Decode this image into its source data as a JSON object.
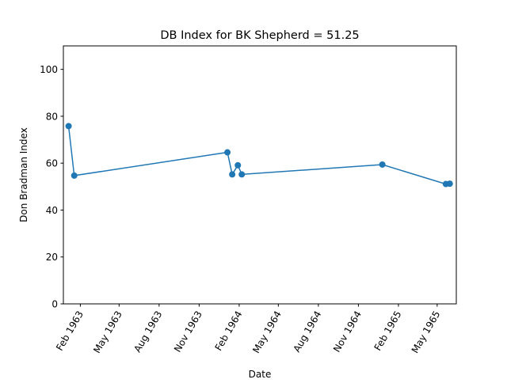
{
  "chart_data": {
    "type": "line",
    "title": "DB Index for BK Shepherd = 51.25",
    "xlabel": "Date",
    "ylabel": "Don Bradman Index",
    "x_tick_labels": [
      {
        "date": "1963-02-01",
        "label": "Feb 1963"
      },
      {
        "date": "1963-05-01",
        "label": "May 1963"
      },
      {
        "date": "1963-08-01",
        "label": "Aug 1963"
      },
      {
        "date": "1963-11-01",
        "label": "Nov 1963"
      },
      {
        "date": "1964-02-01",
        "label": "Feb 1964"
      },
      {
        "date": "1964-05-01",
        "label": "May 1964"
      },
      {
        "date": "1964-08-01",
        "label": "Aug 1964"
      },
      {
        "date": "1964-11-01",
        "label": "Nov 1964"
      },
      {
        "date": "1965-02-01",
        "label": "Feb 1965"
      },
      {
        "date": "1965-05-01",
        "label": "May 1965"
      }
    ],
    "y_ticks": [
      0,
      20,
      40,
      60,
      80,
      100
    ],
    "xlim": [
      "1962-12-24",
      "1965-06-14"
    ],
    "ylim": [
      0,
      110
    ],
    "grid": false,
    "series": [
      {
        "color": "#1f77b4",
        "points": [
          {
            "x": "1963-01-05",
            "y": 75.8
          },
          {
            "x": "1963-01-18",
            "y": 54.7
          },
          {
            "x": "1964-01-05",
            "y": 64.6
          },
          {
            "x": "1964-01-16",
            "y": 55.2
          },
          {
            "x": "1964-01-29",
            "y": 59.1
          },
          {
            "x": "1964-02-07",
            "y": 55.2
          },
          {
            "x": "1964-12-26",
            "y": 59.4
          },
          {
            "x": "1965-05-21",
            "y": 51.1
          },
          {
            "x": "1965-05-30",
            "y": 51.25
          }
        ]
      }
    ]
  }
}
